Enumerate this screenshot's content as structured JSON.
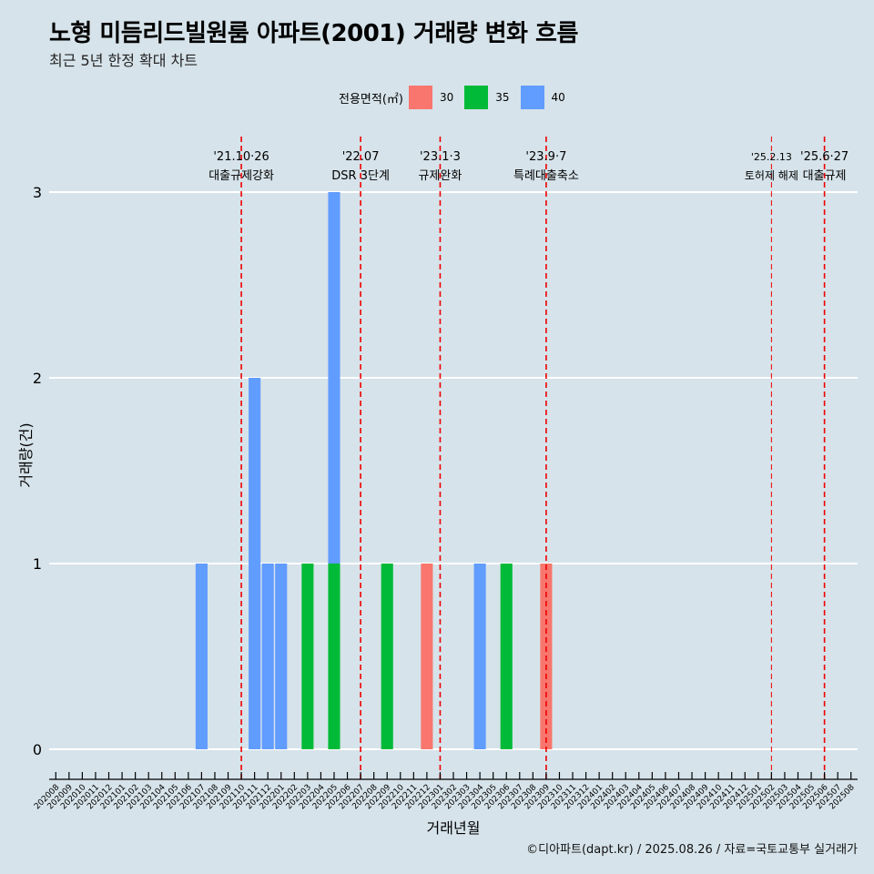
{
  "title": "노형 미듬리드빌원룸 아파트(2001) 거래량 변화 흐름",
  "subtitle": "최근 5년 한정 확대 차트",
  "source": "©디아파트(dapt.kr) / 2025.08.26 / 자료=국토교통부 실거래가",
  "legend": {
    "title": "전용면적(㎡)",
    "items": [
      {
        "label": "30",
        "color": "#f8766d"
      },
      {
        "label": "35",
        "color": "#00ba38"
      },
      {
        "label": "40",
        "color": "#619cff"
      }
    ]
  },
  "chart_data": {
    "type": "bar",
    "stacked": true,
    "xlabel": "거래년월",
    "ylabel": "거래량(건)",
    "ylim": [
      0,
      3
    ],
    "yticks": [
      0,
      1,
      2,
      3
    ],
    "categories": [
      "202008",
      "202009",
      "202010",
      "202011",
      "202012",
      "202101",
      "202102",
      "202103",
      "202104",
      "202105",
      "202106",
      "202107",
      "202108",
      "202109",
      "202110",
      "202111",
      "202112",
      "202201",
      "202202",
      "202203",
      "202204",
      "202205",
      "202206",
      "202207",
      "202208",
      "202209",
      "202210",
      "202211",
      "202212",
      "202301",
      "202302",
      "202303",
      "202304",
      "202305",
      "202306",
      "202307",
      "202308",
      "202309",
      "202310",
      "202311",
      "202312",
      "202401",
      "202402",
      "202403",
      "202404",
      "202405",
      "202406",
      "202407",
      "202408",
      "202409",
      "202410",
      "202411",
      "202412",
      "202501",
      "202502",
      "202503",
      "202504",
      "202505",
      "202506",
      "202507",
      "202508"
    ],
    "series": [
      {
        "name": "30",
        "color": "#f8766d",
        "values": [
          0,
          0,
          0,
          0,
          0,
          0,
          0,
          0,
          0,
          0,
          0,
          0,
          0,
          0,
          0,
          0,
          0,
          0,
          0,
          0,
          0,
          0,
          0,
          0,
          0,
          0,
          0,
          0,
          1,
          0,
          0,
          0,
          0,
          0,
          0,
          0,
          0,
          1,
          0,
          0,
          0,
          0,
          0,
          0,
          0,
          0,
          0,
          0,
          0,
          0,
          0,
          0,
          0,
          0,
          0,
          0,
          0,
          0,
          0,
          0,
          0
        ]
      },
      {
        "name": "35",
        "color": "#00ba38",
        "values": [
          0,
          0,
          0,
          0,
          0,
          0,
          0,
          0,
          0,
          0,
          0,
          0,
          0,
          0,
          0,
          0,
          0,
          0,
          0,
          1,
          0,
          1,
          0,
          0,
          0,
          1,
          0,
          0,
          0,
          0,
          0,
          0,
          0,
          0,
          1,
          0,
          0,
          0,
          0,
          0,
          0,
          0,
          0,
          0,
          0,
          0,
          0,
          0,
          0,
          0,
          0,
          0,
          0,
          0,
          0,
          0,
          0,
          0,
          0,
          0,
          0
        ]
      },
      {
        "name": "40",
        "color": "#619cff",
        "values": [
          0,
          0,
          0,
          0,
          0,
          0,
          0,
          0,
          0,
          0,
          0,
          1,
          0,
          0,
          0,
          2,
          1,
          1,
          0,
          0,
          0,
          2,
          0,
          0,
          0,
          0,
          0,
          0,
          0,
          0,
          0,
          0,
          1,
          0,
          0,
          0,
          0,
          0,
          0,
          0,
          0,
          0,
          0,
          0,
          0,
          0,
          0,
          0,
          0,
          0,
          0,
          0,
          0,
          0,
          0,
          0,
          0,
          0,
          0,
          0,
          0
        ]
      }
    ],
    "annotations": [
      {
        "month": "202110",
        "date": "'21.10·26",
        "label": "대출규제강화"
      },
      {
        "month": "202207",
        "date": "'22.07",
        "label": "DSR 3단계"
      },
      {
        "month": "202301",
        "date": "'23.1·3",
        "label": "규제완화"
      },
      {
        "month": "202309",
        "date": "'23.9·7",
        "label": "특례대출축소"
      },
      {
        "month": "202502",
        "date": "'25.2.13",
        "label": "토허제 해제"
      },
      {
        "month": "202506",
        "date": "'25.6·27",
        "label": "대출규제"
      }
    ],
    "annotation_color": "#ee0000",
    "grid": true,
    "legend_position": "top"
  }
}
